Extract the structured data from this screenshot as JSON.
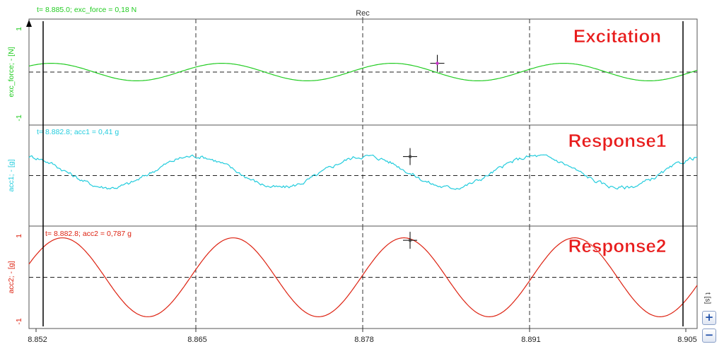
{
  "window": {
    "title": "Rec"
  },
  "colors": {
    "excitation": "#22cc22",
    "response1": "#22ccdd",
    "response2": "#dd2211",
    "title_text": "#e81c1c",
    "cursor": "#000000",
    "marker_excitation": "#cc33cc"
  },
  "controls": {
    "x_axis_unit": "t [s]",
    "zoom_in_label": "+",
    "zoom_out_label": "−"
  },
  "chart_data": [
    {
      "type": "line",
      "title": "Excitation",
      "ylabel": "exc_force; - [N]",
      "ylim": [
        -1,
        1
      ],
      "xlim": [
        8.852,
        8.906
      ],
      "grid": true,
      "cursor_readout": "t= 8.885.0; exc_force = 0,18 N",
      "cursor": {
        "t": 8.885,
        "value": 0.18
      },
      "y_ticks": [
        "1",
        "-1"
      ],
      "series": [
        {
          "amplitude": 0.18,
          "period": 0.0138,
          "phase_t": 8.8814,
          "offset": 0.0,
          "noise": 0.0
        }
      ]
    },
    {
      "type": "line",
      "title": "Response1",
      "ylabel": "acc1; - [g]",
      "ylim": [
        -1,
        1
      ],
      "xlim": [
        8.852,
        8.906
      ],
      "grid": true,
      "cursor_readout": "t= 8.882.8; acc1 = 0,41 g",
      "cursor": {
        "t": 8.8828,
        "value": 0.41
      },
      "y_ticks": [],
      "series": [
        {
          "amplitude": 0.34,
          "period": 0.0138,
          "phase_t": 8.8792,
          "offset": 0.08,
          "noise": 0.035
        }
      ]
    },
    {
      "type": "line",
      "title": "Response2",
      "ylabel": "acc2; - [g]",
      "ylim": [
        -1,
        1
      ],
      "xlim": [
        8.852,
        8.906
      ],
      "grid": true,
      "cursor_readout": "t= 8.882.8; acc2 = 0,787 g",
      "cursor": {
        "t": 8.8828,
        "value": 0.787
      },
      "y_ticks": [
        "1",
        "-1"
      ],
      "series": [
        {
          "amplitude": 0.84,
          "period": 0.0138,
          "phase_t": 8.8823,
          "offset": 0.0,
          "noise": 0.0
        }
      ]
    }
  ],
  "x_axis": {
    "ticks": [
      "8.852",
      "8.865",
      "8.878",
      "8.891",
      "8.905"
    ]
  }
}
